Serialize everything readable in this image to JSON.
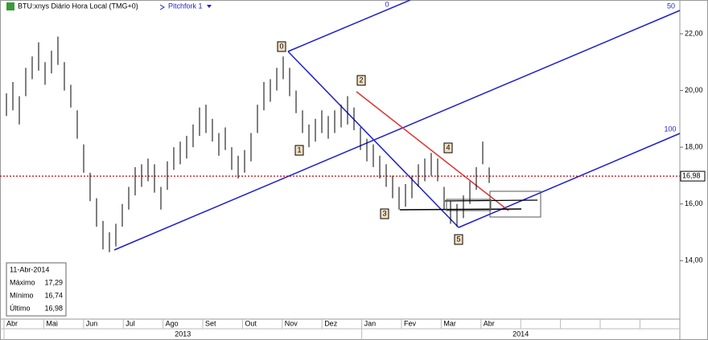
{
  "chart_data": {
    "type": "ohlc",
    "title": "BTU:xnys Diário Hora Local (TMG+0)",
    "study": "Pitchfork 1",
    "categories": [
      "Abr",
      "Mai",
      "Jun",
      "Jul",
      "Ago",
      "Set",
      "Out",
      "Nov",
      "Dez",
      "Jan",
      "Fev",
      "Mar",
      "Abr",
      null,
      null,
      null,
      null
    ],
    "years": [
      {
        "label": "2013",
        "from": 0,
        "to": 8
      },
      {
        "label": "2014",
        "from": 9,
        "to": 16
      }
    ],
    "high": [
      19.9,
      20.3,
      19.8,
      20.8,
      21.2,
      21.7,
      21.0,
      21.4,
      21.9,
      21.0,
      20.2,
      19.3,
      18.1,
      17.1,
      16.2,
      15.4,
      15.0,
      15.3,
      16.0,
      16.6,
      17.3,
      17.4,
      17.6,
      17.4,
      16.6,
      17.5,
      18.0,
      18.2,
      18.4,
      18.8,
      19.4,
      19.5,
      19.0,
      18.5,
      18.7,
      18.0,
      17.7,
      17.9,
      18.5,
      19.5,
      20.3,
      20.4,
      20.8,
      21.2,
      20.8,
      20.0,
      19.3,
      18.8,
      19.0,
      19.3,
      19.1,
      19.3,
      19.5,
      19.8,
      19.4,
      18.7,
      18.3,
      18.1,
      17.7,
      17.4,
      17.0,
      16.6,
      16.7,
      17.0,
      17.4,
      17.6,
      17.8,
      17.6,
      16.6,
      16.1,
      16.0,
      16.3,
      16.8,
      17.3,
      18.2,
      17.29
    ],
    "low": [
      19.1,
      19.3,
      18.8,
      19.8,
      20.4,
      20.7,
      20.2,
      20.6,
      20.9,
      20.0,
      19.4,
      18.3,
      17.1,
      16.1,
      15.2,
      14.4,
      14.3,
      14.5,
      15.2,
      15.8,
      16.3,
      16.6,
      16.8,
      16.4,
      15.8,
      16.5,
      17.2,
      17.4,
      17.6,
      18.0,
      18.4,
      18.5,
      18.2,
      17.7,
      17.9,
      17.2,
      16.9,
      17.1,
      17.5,
      18.5,
      19.3,
      19.6,
      20.0,
      20.4,
      19.8,
      19.2,
      18.5,
      18.0,
      18.2,
      18.5,
      18.3,
      18.5,
      18.7,
      18.8,
      18.6,
      17.9,
      17.5,
      17.3,
      16.9,
      16.6,
      16.2,
      15.8,
      15.9,
      16.2,
      16.6,
      16.8,
      17.0,
      16.8,
      15.8,
      15.3,
      15.2,
      15.5,
      16.0,
      16.5,
      17.4,
      16.74
    ],
    "ylim": [
      11.94,
      23.19
    ],
    "yticks": [
      {
        "value": 14,
        "label": "14,00"
      },
      {
        "value": 16,
        "label": "16,00"
      },
      {
        "value": 18,
        "label": "18,00"
      },
      {
        "value": 20,
        "label": "20,00"
      },
      {
        "value": 22,
        "label": "22,00"
      }
    ],
    "last": {
      "value": 16.98,
      "label": "16,98"
    },
    "last_color": "#cc0000",
    "bar_color": "#000000",
    "pitchfork_labels": [
      "0",
      "50",
      "100"
    ],
    "markers": [
      "0",
      "1",
      "2",
      "3",
      "4",
      "5"
    ],
    "info_panel": {
      "date": "11-Abr-2014",
      "rows": [
        {
          "label": "Máximo",
          "value": "17,29"
        },
        {
          "label": "Mínimo",
          "value": "16,74"
        },
        {
          "label": "Último",
          "value": "16,98"
        }
      ]
    }
  }
}
